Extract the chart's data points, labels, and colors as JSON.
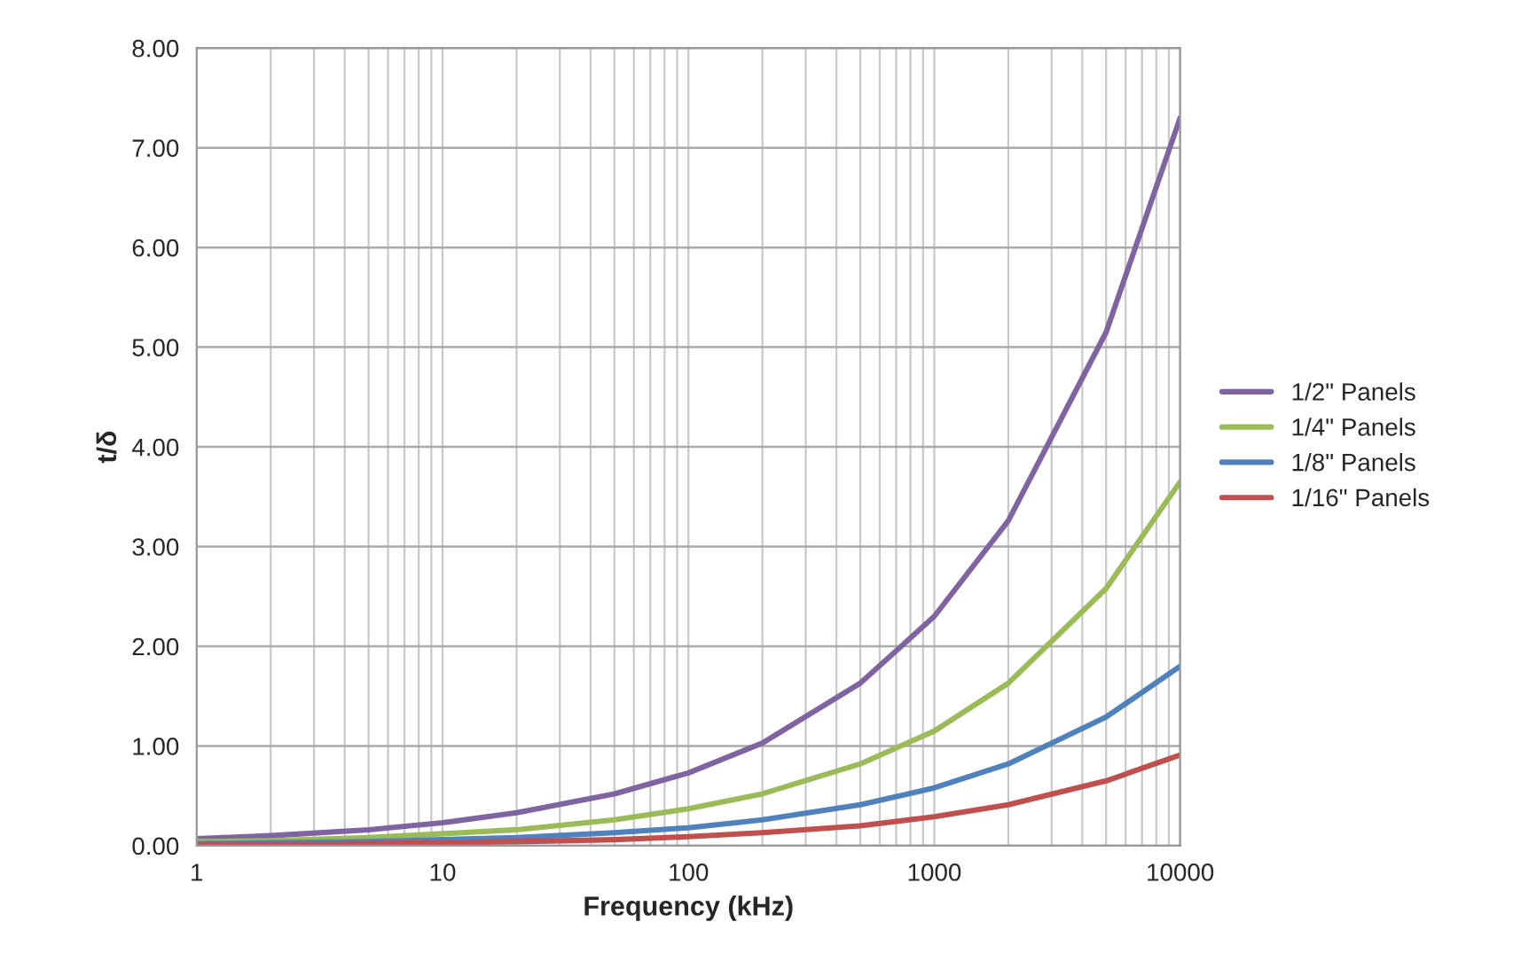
{
  "chart_data": {
    "type": "line",
    "xlabel": "Frequency (kHz)",
    "ylabel": "t/δ",
    "log": "x",
    "grid": true,
    "legend": "right",
    "marker": "none",
    "line_style": "solid",
    "x": [
      1,
      2,
      5,
      10,
      20,
      50,
      100,
      200,
      500,
      1000,
      2000,
      5000,
      10000
    ],
    "xlim": [
      1,
      10000
    ],
    "xticks": [
      1,
      10,
      100,
      1000,
      10000
    ],
    "ylim": [
      0,
      8
    ],
    "yticks": [
      {
        "value": 0,
        "label": "0.00"
      },
      {
        "value": 1,
        "label": "1.00"
      },
      {
        "value": 2,
        "label": "2.00"
      },
      {
        "value": 3,
        "label": "3.00"
      },
      {
        "value": 4,
        "label": "4.00"
      },
      {
        "value": 5,
        "label": "5.00"
      },
      {
        "value": 6,
        "label": "6.00"
      },
      {
        "value": 7,
        "label": "7.00"
      },
      {
        "value": 8,
        "label": "8.00"
      }
    ],
    "series": [
      {
        "name": "1/2\" Panels",
        "color": "#8064a2",
        "values": [
          0.07,
          0.1,
          0.16,
          0.23,
          0.33,
          0.52,
          0.73,
          1.03,
          1.63,
          2.3,
          3.26,
          5.15,
          7.3
        ]
      },
      {
        "name": "1/4\" Panels",
        "color": "#9bbb59",
        "values": [
          0.04,
          0.05,
          0.08,
          0.12,
          0.16,
          0.26,
          0.37,
          0.52,
          0.82,
          1.15,
          1.63,
          2.58,
          3.65
        ]
      },
      {
        "name": "1/8\" Panels",
        "color": "#4f81bd",
        "values": [
          0.02,
          0.03,
          0.04,
          0.06,
          0.08,
          0.13,
          0.18,
          0.26,
          0.41,
          0.58,
          0.82,
          1.29,
          1.8
        ]
      },
      {
        "name": "1/16\" Panels",
        "color": "#c0504d",
        "values": [
          0.01,
          0.01,
          0.02,
          0.03,
          0.04,
          0.06,
          0.09,
          0.13,
          0.2,
          0.29,
          0.41,
          0.65,
          0.91
        ]
      }
    ]
  }
}
